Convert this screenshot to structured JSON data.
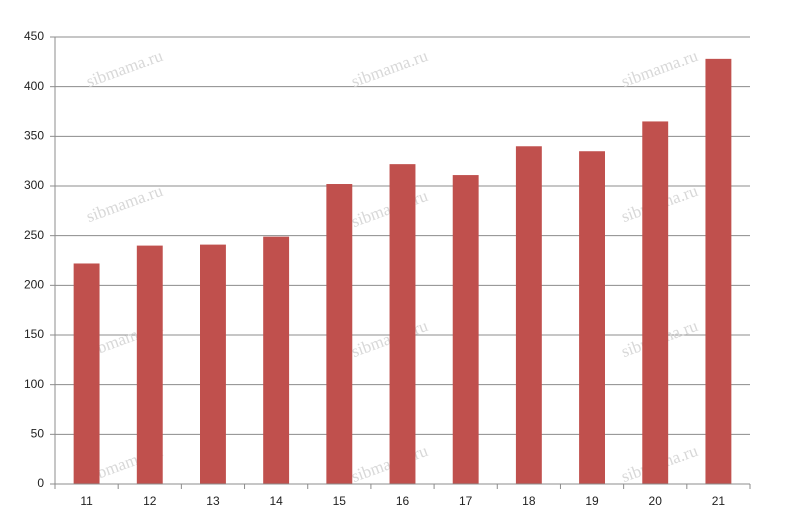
{
  "chart_data": {
    "type": "bar",
    "categories": [
      "11",
      "12",
      "13",
      "14",
      "15",
      "16",
      "17",
      "18",
      "19",
      "20",
      "21"
    ],
    "values": [
      222,
      240,
      241,
      249,
      302,
      322,
      311,
      340,
      335,
      365,
      428
    ],
    "color": "#c0504d",
    "ylim": [
      0,
      450
    ],
    "yticks": [
      0,
      50,
      100,
      150,
      200,
      250,
      300,
      350,
      400,
      450
    ],
    "grid": true,
    "watermark": "sibmama.ru"
  }
}
